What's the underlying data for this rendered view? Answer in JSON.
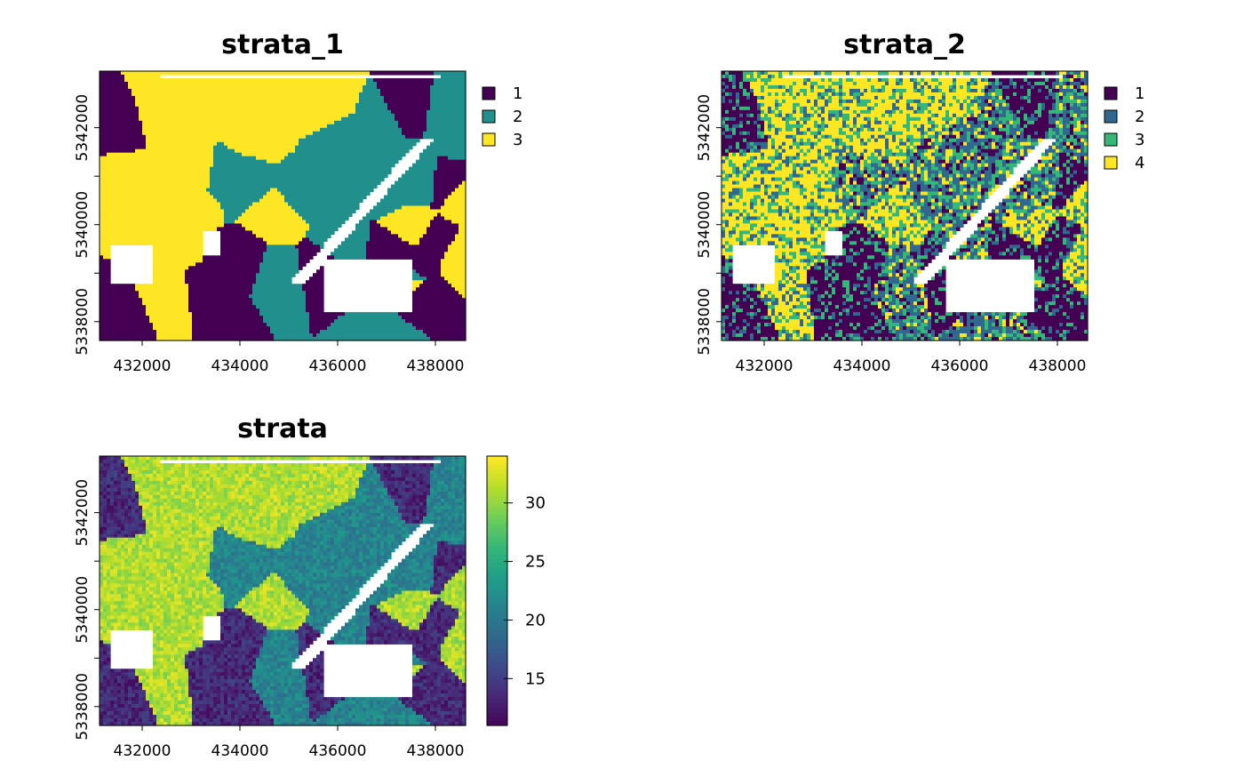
{
  "panels": [
    {
      "title": "strata_1",
      "legend_type": "categorical",
      "legend": [
        {
          "label": "1",
          "color": "#440154"
        },
        {
          "label": "2",
          "color": "#21908C"
        },
        {
          "label": "3",
          "color": "#FDE725"
        }
      ],
      "x_ticks": [
        "432000",
        "434000",
        "436000",
        "438000"
      ],
      "y_ticks": [
        "5338000",
        "5340000",
        "5342000"
      ]
    },
    {
      "title": "strata_2",
      "legend_type": "categorical",
      "legend": [
        {
          "label": "1",
          "color": "#440154"
        },
        {
          "label": "2",
          "color": "#31688E"
        },
        {
          "label": "3",
          "color": "#35B779"
        },
        {
          "label": "4",
          "color": "#FDE725"
        }
      ],
      "x_ticks": [
        "432000",
        "434000",
        "436000",
        "438000"
      ],
      "y_ticks": [
        "5338000",
        "5340000",
        "5342000"
      ]
    },
    {
      "title": "strata",
      "legend_type": "continuous",
      "colorbar": {
        "min": 11,
        "max": 34,
        "ticks": [
          "15",
          "20",
          "25",
          "30"
        ],
        "colors": [
          "#440154",
          "#482777",
          "#3E4989",
          "#31688E",
          "#26828E",
          "#1F9E89",
          "#35B779",
          "#6ECE58",
          "#B5DE2B",
          "#FDE725"
        ]
      },
      "x_ticks": [
        "432000",
        "434000",
        "436000",
        "438000"
      ],
      "y_ticks": [
        "5338000",
        "5340000",
        "5342000"
      ]
    }
  ]
}
